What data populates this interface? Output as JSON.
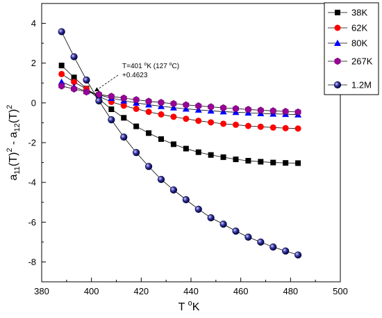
{
  "chart_data": {
    "type": "line",
    "xlabel_main": "T",
    "xlabel_unit": "°K",
    "ylabel": "a11(T)² - a12(T)²",
    "xlim": [
      380,
      500
    ],
    "ylim": [
      -9,
      5
    ],
    "x_ticks": [
      380,
      400,
      420,
      440,
      460,
      480,
      500
    ],
    "y_ticks": [
      -8,
      -6,
      -4,
      -2,
      0,
      2,
      4
    ],
    "grid": false,
    "legend_position": "top-right",
    "x": [
      388,
      393,
      398,
      403,
      408,
      413,
      418,
      423,
      428,
      433,
      438,
      443,
      448,
      453,
      458,
      463,
      468,
      473,
      478,
      483
    ],
    "series": [
      {
        "name": "38K",
        "color": "#000000",
        "marker": "square",
        "values": [
          1.88,
          1.28,
          0.72,
          0.2,
          -0.32,
          -0.75,
          -1.18,
          -1.52,
          -1.82,
          -2.08,
          -2.3,
          -2.48,
          -2.62,
          -2.73,
          -2.84,
          -2.91,
          -2.96,
          -3.0,
          -3.02,
          -3.03
        ]
      },
      {
        "name": "62K",
        "color": "#ff0000",
        "marker": "circle",
        "values": [
          1.45,
          1.05,
          0.7,
          0.32,
          0.05,
          -0.14,
          -0.3,
          -0.45,
          -0.58,
          -0.7,
          -0.8,
          -0.9,
          -0.98,
          -1.05,
          -1.1,
          -1.16,
          -1.2,
          -1.24,
          -1.27,
          -1.29
        ]
      },
      {
        "name": "80K",
        "color": "#0000ff",
        "marker": "triangle",
        "values": [
          1.05,
          0.8,
          0.58,
          0.4,
          0.24,
          0.11,
          0.0,
          -0.09,
          -0.17,
          -0.24,
          -0.3,
          -0.35,
          -0.4,
          -0.44,
          -0.47,
          -0.5,
          -0.53,
          -0.55,
          -0.57,
          -0.59
        ]
      },
      {
        "name": "267K",
        "color": "#990099",
        "marker": "hexagon",
        "values": [
          0.85,
          0.7,
          0.55,
          0.43,
          0.33,
          0.24,
          0.16,
          0.08,
          0.02,
          -0.04,
          -0.1,
          -0.15,
          -0.2,
          -0.25,
          -0.29,
          -0.33,
          -0.37,
          -0.4,
          -0.43,
          -0.46
        ]
      },
      {
        "name": "1.2M",
        "color": "#000080",
        "marker": "sphere",
        "values": [
          3.58,
          2.32,
          1.15,
          0.1,
          -0.85,
          -1.72,
          -2.5,
          -3.2,
          -3.85,
          -4.38,
          -4.87,
          -5.35,
          -5.78,
          -6.1,
          -6.45,
          -6.75,
          -7.0,
          -7.25,
          -7.45,
          -7.65
        ]
      }
    ],
    "annotation": {
      "line1": "T=401 °K (127 °C)",
      "line2": "+0.4623",
      "point_x": 401,
      "point_y": 0.4623
    }
  },
  "labels": {
    "ylabel_a": "a",
    "ylabel_sub1": "11",
    "ylabel_mid1": "(T)",
    "ylabel_sup1": "2",
    "ylabel_mid2": " - a",
    "ylabel_sub2": "12",
    "ylabel_mid3": "(T)",
    "ylabel_sup2": "2",
    "xlabel_T": "T ",
    "xlabel_deg": "o",
    "xlabel_K": "K",
    "annot_line1_a": "T=401 ",
    "annot_line1_deg1": "o",
    "annot_line1_b": "K (127 ",
    "annot_line1_deg2": "o",
    "annot_line1_c": "C)",
    "annot_line2": "+0.4623"
  }
}
